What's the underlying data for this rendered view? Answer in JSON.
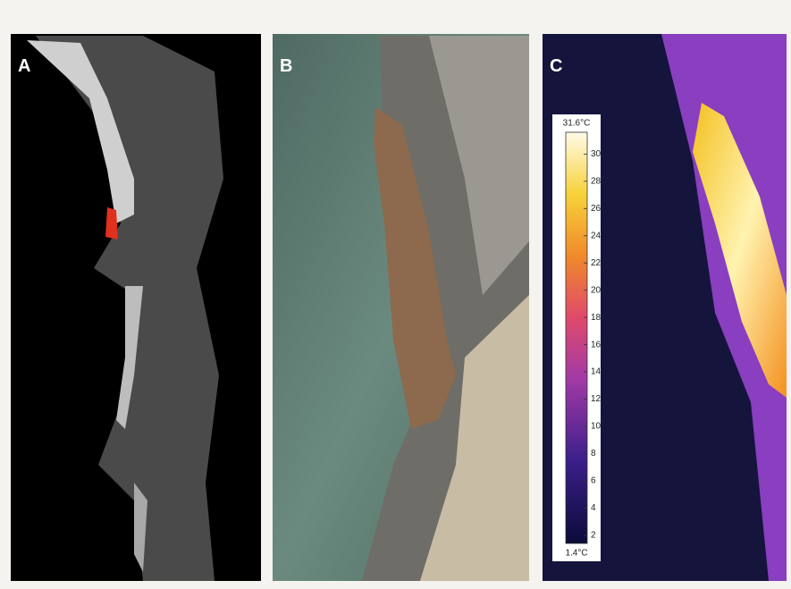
{
  "panels": [
    {
      "label": "A"
    },
    {
      "label": "B"
    },
    {
      "label": "C"
    }
  ],
  "colorbar": {
    "max": {
      "value": 31.6,
      "label": "31.6°C"
    },
    "min": {
      "value": 1.4,
      "label": "1.4°C"
    },
    "ticks": [
      2,
      4,
      6,
      8,
      10,
      12,
      14,
      16,
      18,
      20,
      22,
      24,
      26,
      28,
      30
    ]
  }
}
